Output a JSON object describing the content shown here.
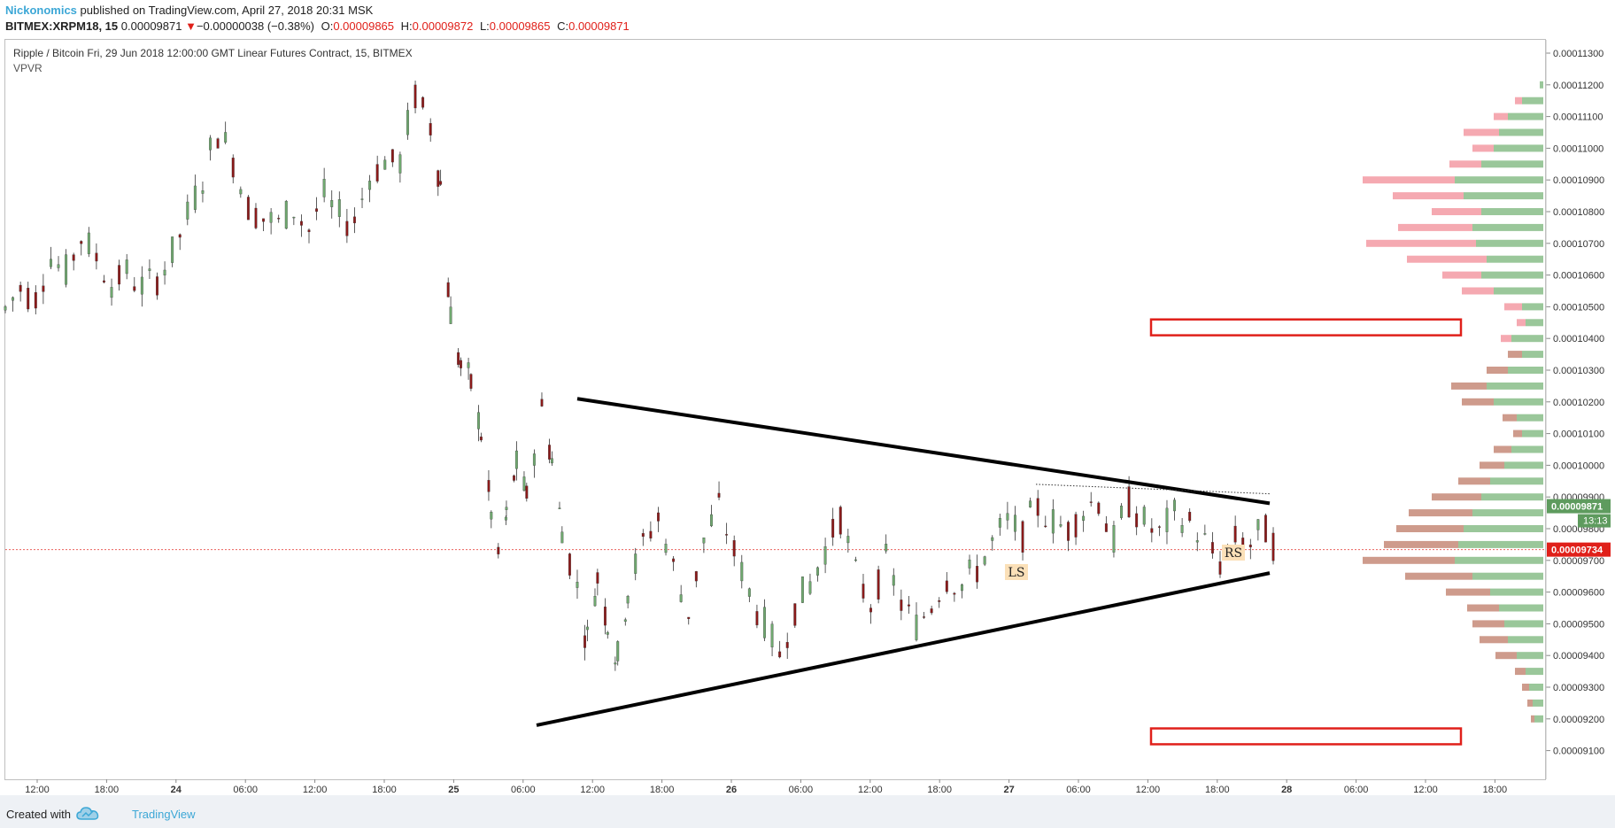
{
  "header": {
    "author": "Nickonomics",
    "published_text": "published on TradingView.com, April 27, 2018 20:31 MSK",
    "symbol": "BITMEX:XRPM18, 15",
    "last_price": "0.00009871",
    "change_arrow": "▼",
    "change": "−0.00000038 (−0.38%)",
    "o_label": "O:",
    "o_value": "0.00009865",
    "h_label": "H:",
    "h_value": "0.00009872",
    "l_label": "L:",
    "l_value": "0.00009865",
    "c_label": "C:",
    "c_value": "0.00009871"
  },
  "chart_header": {
    "title": "Ripple / Bitcoin Fri, 29 Jun 2018 12:00:00 GMT Linear Futures Contract, 15, BITMEX",
    "indicator": "VPVR"
  },
  "footer": {
    "created_with": "Created with",
    "brand": "TradingView"
  },
  "colors": {
    "up": "#6fa86f",
    "down": "#8b1a1a",
    "vp_up": "#8fc18f",
    "vp_down_upper": "#f4a0a8",
    "vp_down_lower": "#c99080",
    "current_badge": "#5e9b5e",
    "ref_badge": "#e0201a",
    "zone_border": "#e0201a"
  },
  "chart_data": {
    "type": "candlestick",
    "y_axis_ticks": [
      "0.00011300",
      "0.00011200",
      "0.00011100",
      "0.00011000",
      "0.00010900",
      "0.00010800",
      "0.00010700",
      "0.00010600",
      "0.00010500",
      "0.00010400",
      "0.00010300",
      "0.00010200",
      "0.00010100",
      "0.00010000",
      "0.00009900",
      "0.00009800",
      "0.00009700",
      "0.00009600",
      "0.00009500",
      "0.00009400",
      "0.00009300",
      "0.00009200",
      "0.00009100"
    ],
    "ylim": [
      9.07e-05,
      0.0001135
    ],
    "x_axis_ticks": [
      "12:00",
      "18:00",
      "24",
      "06:00",
      "12:00",
      "18:00",
      "25",
      "06:00",
      "12:00",
      "18:00",
      "26",
      "06:00",
      "12:00",
      "18:00",
      "27",
      "06:00",
      "12:00",
      "18:00",
      "28",
      "06:00",
      "12:00",
      "18:00"
    ],
    "x_bold_ticks": [
      "24",
      "25",
      "26",
      "27",
      "28"
    ],
    "current_price": {
      "value": 9.871e-05,
      "label": "0.00009871",
      "countdown": "13:13"
    },
    "reference_line": {
      "value": 9.734e-05,
      "label": "0.00009734"
    },
    "annotations": [
      {
        "label": "LS",
        "x": "Apr 27 00:00",
        "y": 9.66e-05
      },
      {
        "label": "RS",
        "x": "Apr 27 18:30",
        "y": 9.69e-05
      }
    ],
    "triangle": {
      "upper": [
        [
          "Apr 25 11:00",
          0.0001021
        ],
        [
          "Apr 28 00:00",
          9.88e-05
        ]
      ],
      "lower": [
        [
          "Apr 25 06:00",
          9.18e-05
        ],
        [
          "Apr 28 00:00",
          9.66e-05
        ]
      ]
    },
    "dotted_neckline": [
      [
        "Apr 27 02:00",
        9.94e-05
      ],
      [
        "Apr 28 00:00",
        9.91e-05
      ]
    ],
    "zones": [
      {
        "x_from": "Apr 28 12:00",
        "x_to": "Apr 29 11:00",
        "y_low": 0.0001041,
        "y_high": 0.0001046
      },
      {
        "x_from": "Apr 28 12:00",
        "x_to": "Apr 29 11:00",
        "y_low": 9.12e-05,
        "y_high": 9.17e-05
      }
    ],
    "price_path": [
      [
        0,
        0.0001049
      ],
      [
        1.5,
        0.0001056
      ],
      [
        3,
        0.0001053
      ],
      [
        4.5,
        0.0001066
      ],
      [
        6,
        0.000106
      ],
      [
        7.5,
        0.0001072
      ],
      [
        9,
        0.0001066
      ],
      [
        10.5,
        0.0001057
      ],
      [
        12,
        0.0001061
      ],
      [
        13.5,
        0.0001056
      ],
      [
        15,
        0.0001059
      ],
      [
        16.5,
        0.0001066
      ],
      [
        18,
        0.0001078
      ],
      [
        19.5,
        0.000109
      ],
      [
        21,
        0.0001106
      ],
      [
        22.5,
        0.0001097
      ],
      [
        24,
        0.0001082
      ],
      [
        25.5,
        0.0001078
      ],
      [
        27,
        0.0001076
      ],
      [
        28.5,
        0.0001081
      ],
      [
        30,
        0.0001074
      ],
      [
        31.5,
        0.0001085
      ],
      [
        33,
        0.0001078
      ],
      [
        34.5,
        0.0001077
      ],
      [
        36,
        0.0001091
      ],
      [
        37.5,
        0.0001096
      ],
      [
        39,
        0.0001095
      ],
      [
        40.5,
        0.0001117
      ],
      [
        42,
        0.0001108
      ],
      [
        43,
        0.000109
      ],
      [
        44,
        0.0001048
      ],
      [
        45,
        0.0001031
      ],
      [
        46,
        0.0001026
      ],
      [
        47,
        0.0001011
      ],
      [
        48,
        9.85e-05
      ],
      [
        48.7,
        9.7e-05
      ],
      [
        49.5,
        9.83e-05
      ],
      [
        50.5,
        0.0001
      ],
      [
        51.5,
        9.9e-05
      ],
      [
        53,
        0.0001018
      ],
      [
        54,
        0.0001003
      ],
      [
        55,
        9.8e-05
      ],
      [
        56.5,
        9.62e-05
      ],
      [
        57.5,
        9.45e-05
      ],
      [
        58.5,
        9.65e-05
      ],
      [
        59.5,
        9.51e-05
      ],
      [
        60.5,
        9.38e-05
      ],
      [
        61.5,
        9.6e-05
      ],
      [
        63,
        9.75e-05
      ],
      [
        64.5,
        9.84e-05
      ],
      [
        66,
        9.68e-05
      ],
      [
        67.5,
        9.53e-05
      ],
      [
        69,
        9.76e-05
      ],
      [
        70.5,
        9.87e-05
      ],
      [
        72,
        9.73e-05
      ],
      [
        73.5,
        9.6e-05
      ],
      [
        75,
        9.5e-05
      ],
      [
        76.5,
        9.4e-05
      ],
      [
        78,
        9.55e-05
      ],
      [
        79.5,
        9.62e-05
      ],
      [
        81,
        9.73e-05
      ],
      [
        82.5,
        9.85e-05
      ],
      [
        84,
        9.66e-05
      ],
      [
        85.5,
        9.56e-05
      ],
      [
        87,
        9.7e-05
      ],
      [
        88.5,
        9.57e-05
      ],
      [
        90,
        9.49e-05
      ],
      [
        91.5,
        9.56e-05
      ],
      [
        93,
        9.65e-05
      ],
      [
        94.5,
        9.62e-05
      ],
      [
        96,
        9.67e-05
      ],
      [
        97.5,
        9.75e-05
      ],
      [
        99,
        9.82e-05
      ],
      [
        100.5,
        9.78e-05
      ],
      [
        102,
        9.87e-05
      ],
      [
        103.5,
        9.82e-05
      ],
      [
        105,
        9.8e-05
      ],
      [
        106.5,
        9.86e-05
      ],
      [
        108,
        9.9e-05
      ],
      [
        109.5,
        9.75e-05
      ],
      [
        111,
        9.89e-05
      ],
      [
        112.5,
        9.82e-05
      ],
      [
        114,
        9.78e-05
      ],
      [
        115.5,
        9.84e-05
      ],
      [
        117,
        9.82e-05
      ],
      [
        118.5,
        9.76e-05
      ],
      [
        120,
        9.69e-05
      ],
      [
        121.5,
        9.77e-05
      ],
      [
        123,
        9.75e-05
      ],
      [
        124.5,
        9.8e-05
      ],
      [
        126,
        9.72e-05
      ],
      [
        127.5,
        9.78e-05
      ],
      [
        129,
        9.82e-05
      ],
      [
        130.5,
        9.88e-05
      ],
      [
        132,
        9.9e-05
      ],
      [
        133.5,
        9.89e-05
      ],
      [
        135,
        9.86e-05
      ],
      [
        136.5,
        9.83e-05
      ],
      [
        138,
        9.79e-05
      ],
      [
        139.5,
        9.83e-05
      ],
      [
        141,
        9.87e-05
      ]
    ],
    "volume_profile": [
      {
        "price": 0.000112,
        "up": 2,
        "down": 0
      },
      {
        "price": 0.0001115,
        "up": 12,
        "down": 4
      },
      {
        "price": 0.000111,
        "up": 20,
        "down": 8
      },
      {
        "price": 0.0001105,
        "up": 25,
        "down": 20
      },
      {
        "price": 0.00011,
        "up": 28,
        "down": 12
      },
      {
        "price": 0.0001095,
        "up": 35,
        "down": 18
      },
      {
        "price": 0.000109,
        "up": 50,
        "down": 52
      },
      {
        "price": 0.0001085,
        "up": 45,
        "down": 40
      },
      {
        "price": 0.000108,
        "up": 35,
        "down": 28
      },
      {
        "price": 0.0001075,
        "up": 40,
        "down": 42
      },
      {
        "price": 0.000107,
        "up": 38,
        "down": 62
      },
      {
        "price": 0.0001065,
        "up": 32,
        "down": 45
      },
      {
        "price": 0.000106,
        "up": 35,
        "down": 22
      },
      {
        "price": 0.0001055,
        "up": 28,
        "down": 18
      },
      {
        "price": 0.000105,
        "up": 12,
        "down": 10
      },
      {
        "price": 0.0001045,
        "up": 10,
        "down": 5
      },
      {
        "price": 0.000104,
        "up": 18,
        "down": 6
      },
      {
        "price": 0.0001035,
        "up": 12,
        "down": 8
      },
      {
        "price": 0.000103,
        "up": 20,
        "down": 12
      },
      {
        "price": 0.0001025,
        "up": 32,
        "down": 20
      },
      {
        "price": 0.000102,
        "up": 28,
        "down": 18
      },
      {
        "price": 0.0001015,
        "up": 15,
        "down": 8
      },
      {
        "price": 0.000101,
        "up": 12,
        "down": 5
      },
      {
        "price": 0.0001005,
        "up": 18,
        "down": 10
      },
      {
        "price": 0.0001,
        "up": 22,
        "down": 14
      },
      {
        "price": 9.95e-05,
        "up": 30,
        "down": 18
      },
      {
        "price": 9.9e-05,
        "up": 35,
        "down": 28
      },
      {
        "price": 9.85e-05,
        "up": 40,
        "down": 36
      },
      {
        "price": 9.8e-05,
        "up": 45,
        "down": 38
      },
      {
        "price": 9.75e-05,
        "up": 48,
        "down": 42
      },
      {
        "price": 9.7e-05,
        "up": 50,
        "down": 52
      },
      {
        "price": 9.65e-05,
        "up": 40,
        "down": 38
      },
      {
        "price": 9.6e-05,
        "up": 30,
        "down": 25
      },
      {
        "price": 9.55e-05,
        "up": 25,
        "down": 18
      },
      {
        "price": 9.5e-05,
        "up": 22,
        "down": 18
      },
      {
        "price": 9.45e-05,
        "up": 20,
        "down": 16
      },
      {
        "price": 9.4e-05,
        "up": 15,
        "down": 12
      },
      {
        "price": 9.35e-05,
        "up": 10,
        "down": 6
      },
      {
        "price": 9.3e-05,
        "up": 8,
        "down": 4
      },
      {
        "price": 9.25e-05,
        "up": 6,
        "down": 3
      },
      {
        "price": 9.2e-05,
        "up": 5,
        "down": 2
      }
    ]
  }
}
